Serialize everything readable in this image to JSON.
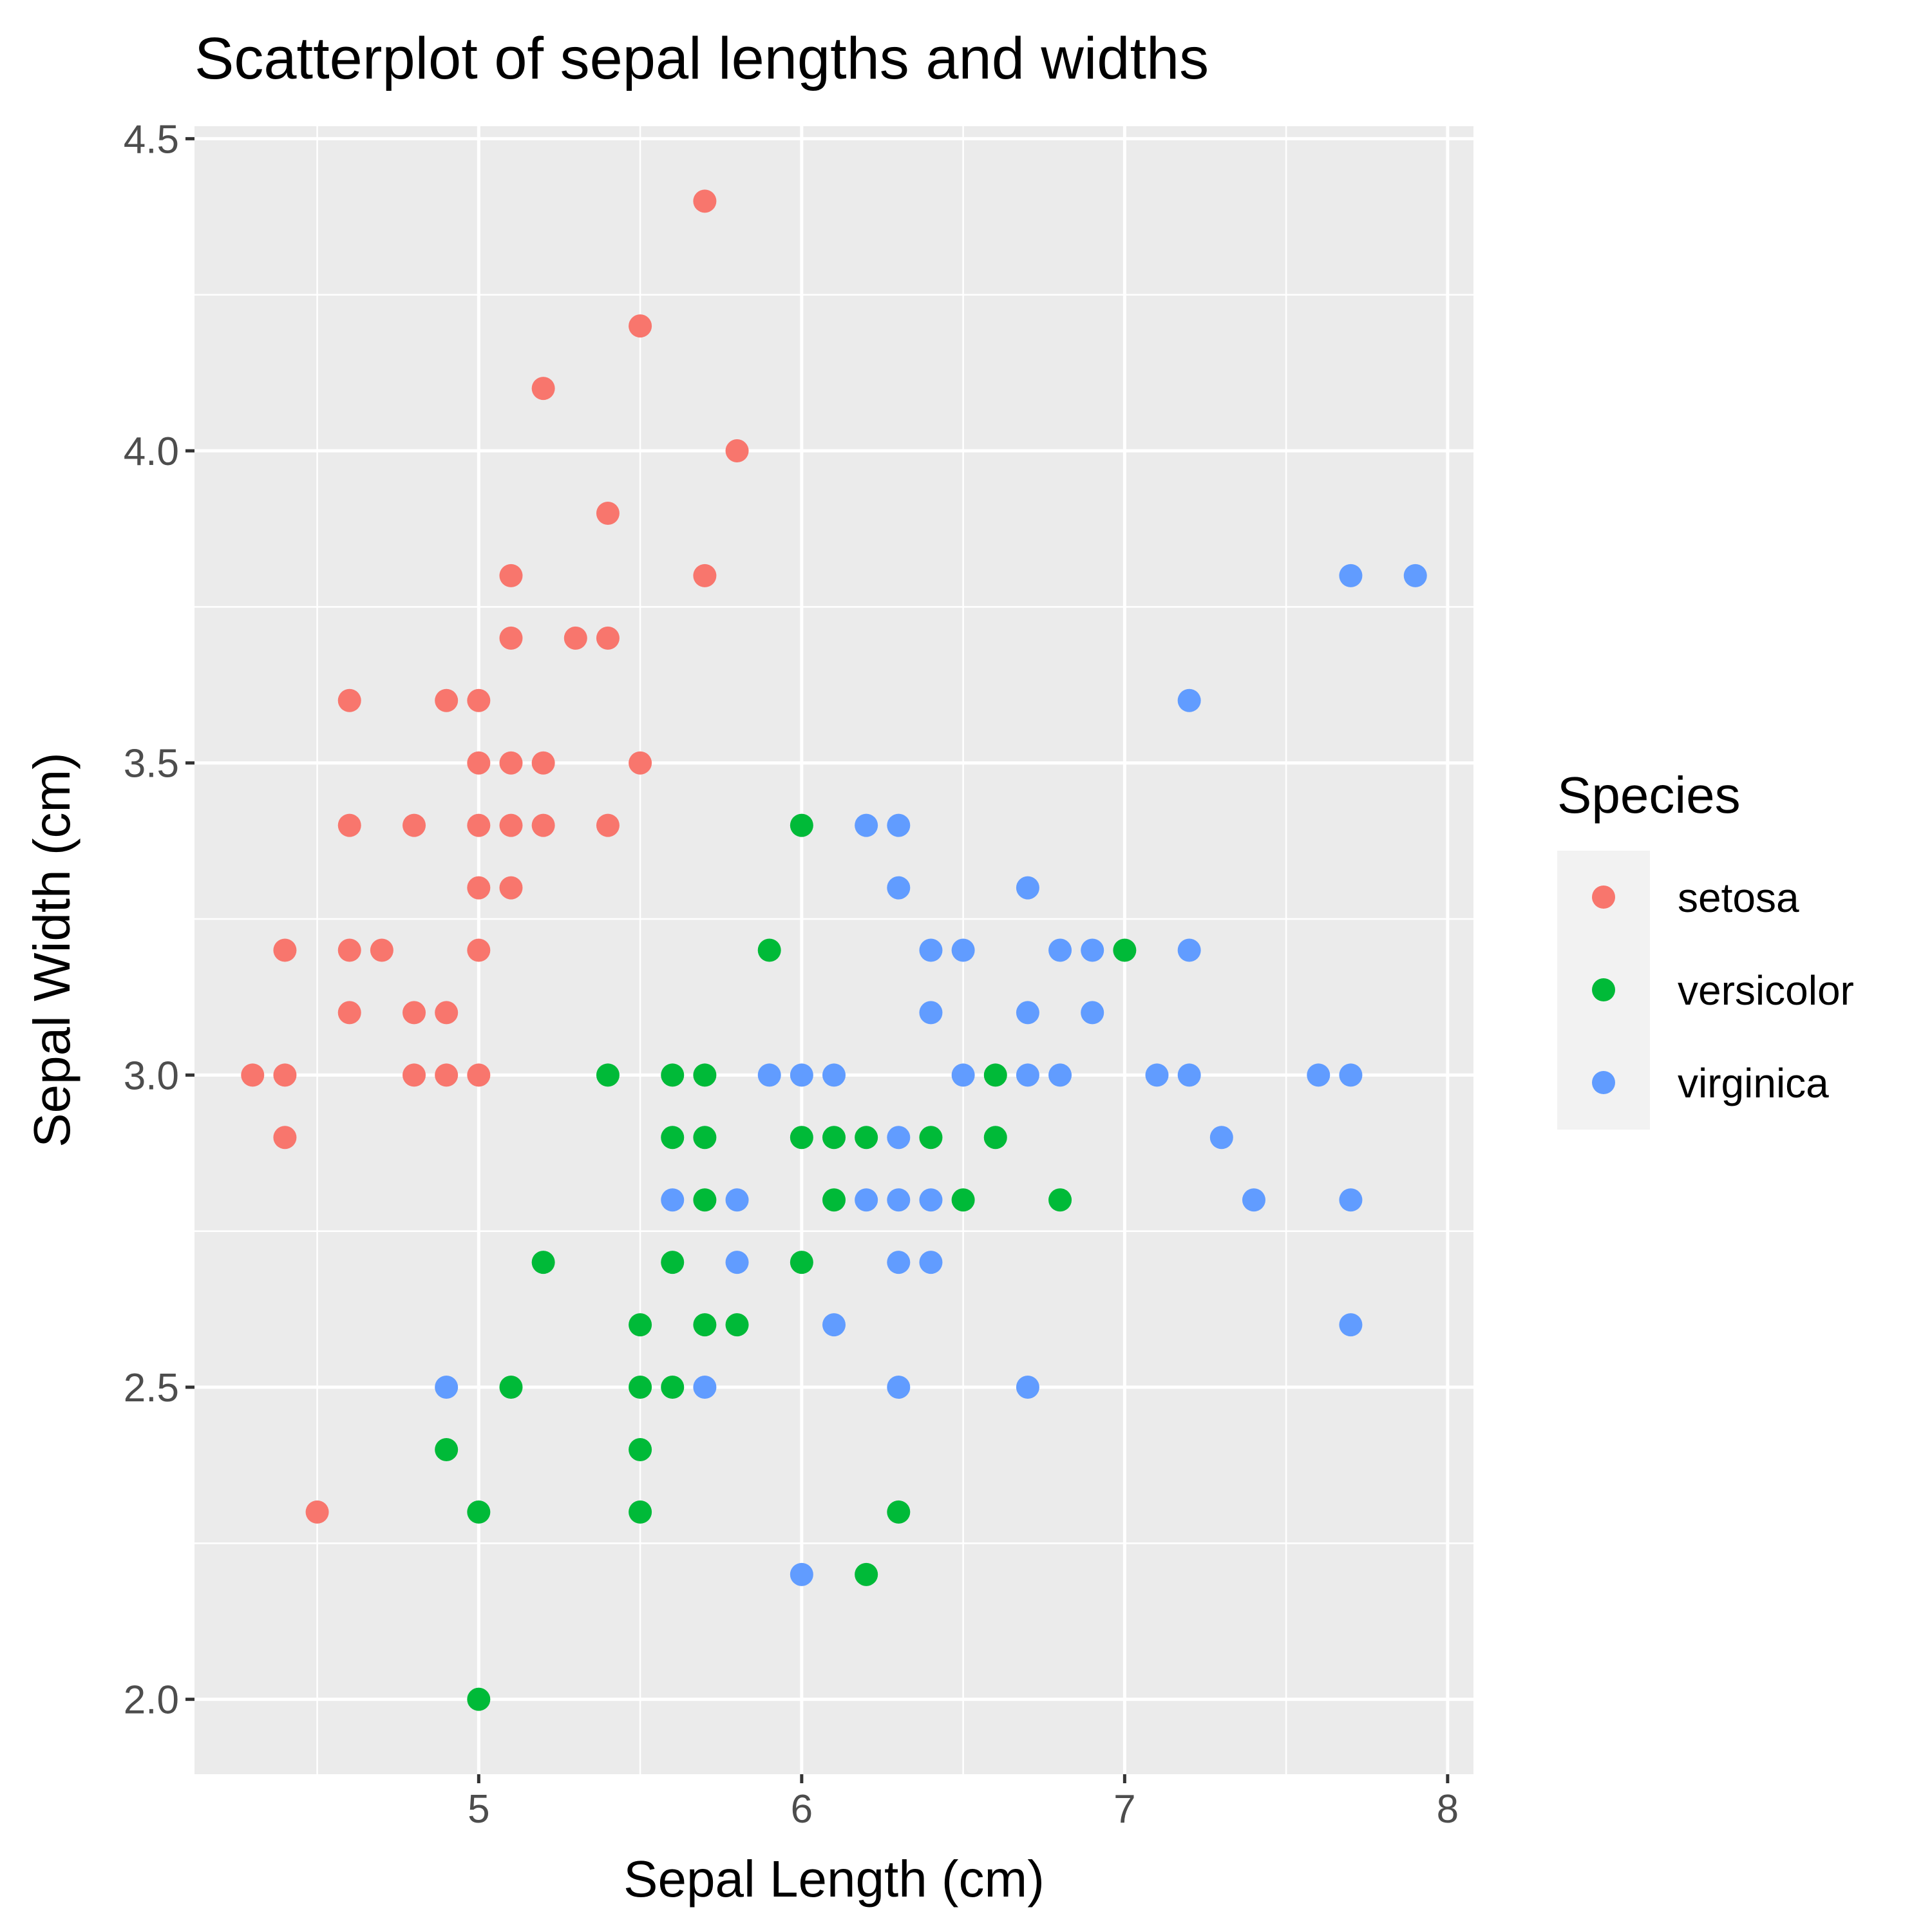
{
  "chart_data": {
    "type": "scatter",
    "title": "Scatterplot of sepal lengths and widths",
    "xlabel": "Sepal Length (cm)",
    "ylabel": "Sepal Width (cm)",
    "xlim": [
      4.12,
      8.08
    ],
    "ylim": [
      1.88,
      4.52
    ],
    "x_ticks": [
      5,
      6,
      7,
      8
    ],
    "x_tick_labels": [
      "5",
      "6",
      "7",
      "8"
    ],
    "y_ticks": [
      2.0,
      2.5,
      3.0,
      3.5,
      4.0,
      4.5
    ],
    "y_tick_labels": [
      "2.0",
      "2.5",
      "3.0",
      "3.5",
      "4.0",
      "4.5"
    ],
    "grid": true,
    "legend": {
      "title": "Species",
      "placement": "right",
      "entries": [
        "setosa",
        "versicolor",
        "virginica"
      ]
    },
    "series": [
      {
        "name": "setosa",
        "color": "#F8766D",
        "points": [
          [
            4.3,
            3.0
          ],
          [
            4.4,
            3.0
          ],
          [
            4.4,
            3.2
          ],
          [
            4.4,
            2.9
          ],
          [
            4.5,
            2.3
          ],
          [
            4.6,
            3.6
          ],
          [
            4.6,
            3.4
          ],
          [
            4.6,
            3.2
          ],
          [
            4.6,
            3.1
          ],
          [
            4.7,
            3.2
          ],
          [
            4.8,
            3.4
          ],
          [
            4.8,
            3.1
          ],
          [
            4.8,
            3.0
          ],
          [
            4.9,
            3.6
          ],
          [
            4.9,
            3.1
          ],
          [
            4.9,
            3.0
          ],
          [
            5.0,
            3.6
          ],
          [
            5.0,
            3.5
          ],
          [
            5.0,
            3.4
          ],
          [
            5.0,
            3.3
          ],
          [
            5.0,
            3.2
          ],
          [
            5.0,
            3.0
          ],
          [
            5.1,
            3.8
          ],
          [
            5.1,
            3.7
          ],
          [
            5.1,
            3.5
          ],
          [
            5.1,
            3.4
          ],
          [
            5.1,
            3.3
          ],
          [
            5.2,
            4.1
          ],
          [
            5.2,
            3.5
          ],
          [
            5.2,
            3.4
          ],
          [
            5.3,
            3.7
          ],
          [
            5.4,
            3.9
          ],
          [
            5.4,
            3.7
          ],
          [
            5.4,
            3.4
          ],
          [
            5.5,
            4.2
          ],
          [
            5.5,
            3.5
          ],
          [
            5.7,
            4.4
          ],
          [
            5.7,
            3.8
          ],
          [
            5.8,
            4.0
          ]
        ]
      },
      {
        "name": "versicolor",
        "color": "#00BA38",
        "points": [
          [
            4.9,
            2.4
          ],
          [
            5.0,
            2.3
          ],
          [
            5.0,
            2.0
          ],
          [
            5.1,
            2.5
          ],
          [
            5.2,
            2.7
          ],
          [
            5.4,
            3.0
          ],
          [
            5.5,
            2.6
          ],
          [
            5.5,
            2.5
          ],
          [
            5.5,
            2.4
          ],
          [
            5.5,
            2.3
          ],
          [
            5.6,
            3.0
          ],
          [
            5.6,
            2.9
          ],
          [
            5.6,
            2.7
          ],
          [
            5.6,
            2.5
          ],
          [
            5.7,
            3.0
          ],
          [
            5.7,
            2.9
          ],
          [
            5.7,
            2.8
          ],
          [
            5.7,
            2.6
          ],
          [
            5.8,
            2.6
          ],
          [
            5.9,
            3.2
          ],
          [
            6.0,
            3.4
          ],
          [
            6.0,
            2.9
          ],
          [
            6.0,
            2.7
          ],
          [
            6.1,
            2.9
          ],
          [
            6.1,
            2.8
          ],
          [
            6.2,
            2.9
          ],
          [
            6.2,
            2.2
          ],
          [
            6.3,
            2.3
          ],
          [
            6.4,
            2.9
          ],
          [
            6.5,
            2.8
          ],
          [
            6.6,
            3.0
          ],
          [
            6.6,
            2.9
          ],
          [
            6.8,
            2.8
          ],
          [
            7.0,
            3.2
          ]
        ]
      },
      {
        "name": "virginica",
        "color": "#619CFF",
        "points": [
          [
            4.9,
            2.5
          ],
          [
            5.6,
            2.8
          ],
          [
            5.7,
            2.5
          ],
          [
            5.8,
            2.8
          ],
          [
            5.8,
            2.7
          ],
          [
            5.9,
            3.0
          ],
          [
            6.0,
            3.0
          ],
          [
            6.0,
            2.2
          ],
          [
            6.1,
            3.0
          ],
          [
            6.1,
            2.6
          ],
          [
            6.2,
            3.4
          ],
          [
            6.2,
            2.8
          ],
          [
            6.3,
            3.4
          ],
          [
            6.3,
            3.3
          ],
          [
            6.3,
            2.9
          ],
          [
            6.3,
            2.8
          ],
          [
            6.3,
            2.7
          ],
          [
            6.3,
            2.5
          ],
          [
            6.4,
            3.2
          ],
          [
            6.4,
            3.1
          ],
          [
            6.4,
            2.8
          ],
          [
            6.4,
            2.7
          ],
          [
            6.5,
            3.2
          ],
          [
            6.5,
            3.0
          ],
          [
            6.7,
            3.3
          ],
          [
            6.7,
            3.1
          ],
          [
            6.7,
            3.0
          ],
          [
            6.7,
            2.5
          ],
          [
            6.8,
            3.2
          ],
          [
            6.8,
            3.0
          ],
          [
            6.9,
            3.2
          ],
          [
            6.9,
            3.1
          ],
          [
            7.1,
            3.0
          ],
          [
            7.2,
            3.6
          ],
          [
            7.2,
            3.2
          ],
          [
            7.2,
            3.0
          ],
          [
            7.3,
            2.9
          ],
          [
            7.4,
            2.8
          ],
          [
            7.6,
            3.0
          ],
          [
            7.7,
            3.8
          ],
          [
            7.7,
            3.0
          ],
          [
            7.7,
            2.8
          ],
          [
            7.7,
            2.6
          ],
          [
            7.9,
            3.8
          ]
        ]
      }
    ]
  }
}
